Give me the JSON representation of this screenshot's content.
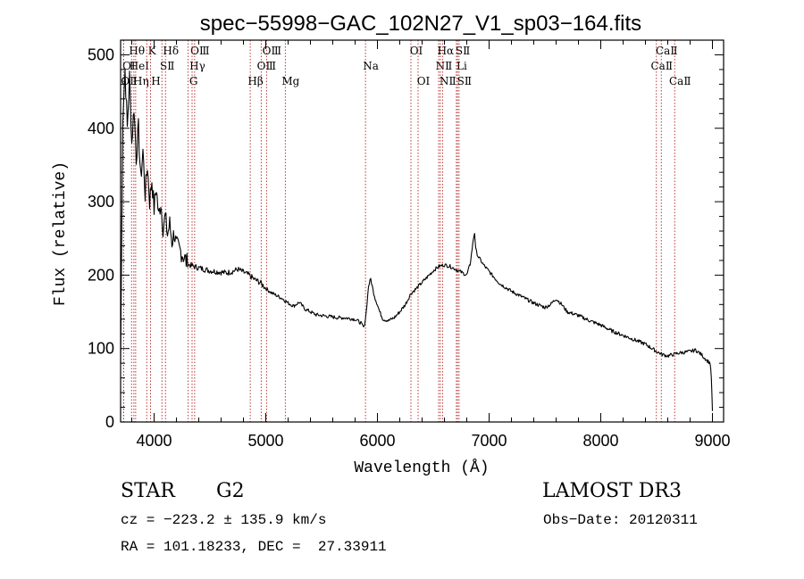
{
  "chart_data": {
    "type": "line",
    "title": "spec−55998−GAC_102N27_V1_sp03−164.fits",
    "xlabel": "Wavelength (Å)",
    "ylabel": "Flux (relative)",
    "xlim": [
      3700,
      9100
    ],
    "ylim": [
      0,
      520
    ],
    "x_ticks": [
      4000,
      5000,
      6000,
      7000,
      8000,
      9000
    ],
    "y_ticks": [
      0,
      100,
      200,
      300,
      400,
      500
    ],
    "x_tick_labels": [
      "4000",
      "5000",
      "6000",
      "7000",
      "8000",
      "9000"
    ],
    "y_tick_labels": [
      "0",
      "100",
      "200",
      "300",
      "400",
      "500"
    ],
    "spectrum": {
      "name": "flux",
      "x": [
        3700,
        3720,
        3740,
        3760,
        3780,
        3800,
        3820,
        3840,
        3860,
        3880,
        3900,
        3920,
        3940,
        3960,
        3980,
        4000,
        4020,
        4040,
        4060,
        4080,
        4100,
        4120,
        4140,
        4160,
        4180,
        4200,
        4250,
        4300,
        4350,
        4400,
        4450,
        4500,
        4550,
        4600,
        4650,
        4700,
        4750,
        4800,
        4850,
        4900,
        4950,
        5000,
        5050,
        5100,
        5150,
        5200,
        5250,
        5300,
        5350,
        5400,
        5450,
        5500,
        5550,
        5600,
        5650,
        5700,
        5750,
        5800,
        5850,
        5880,
        5900,
        5920,
        5940,
        5960,
        5980,
        6000,
        6020,
        6050,
        6100,
        6150,
        6200,
        6250,
        6300,
        6350,
        6400,
        6450,
        6500,
        6550,
        6600,
        6650,
        6700,
        6750,
        6800,
        6830,
        6860,
        6870,
        6880,
        6900,
        6950,
        7000,
        7050,
        7100,
        7200,
        7300,
        7400,
        7500,
        7550,
        7600,
        7650,
        7700,
        7800,
        7900,
        8000,
        8100,
        8200,
        8300,
        8400,
        8500,
        8550,
        8600,
        8650,
        8700,
        8750,
        8800,
        8850,
        8900,
        8950,
        8980,
        8990,
        9000
      ],
      "y": [
        80,
        420,
        480,
        400,
        470,
        380,
        430,
        360,
        400,
        330,
        370,
        310,
        350,
        300,
        330,
        290,
        320,
        280,
        300,
        265,
        280,
        255,
        270,
        245,
        258,
        240,
        230,
        215,
        212,
        210,
        208,
        206,
        205,
        204,
        203,
        205,
        208,
        204,
        200,
        194,
        190,
        182,
        176,
        172,
        168,
        162,
        158,
        163,
        154,
        150,
        146,
        145,
        144,
        143,
        142,
        142,
        141,
        140,
        135,
        128,
        150,
        185,
        195,
        180,
        168,
        160,
        150,
        140,
        138,
        142,
        150,
        160,
        175,
        182,
        190,
        198,
        206,
        212,
        214,
        212,
        208,
        204,
        200,
        215,
        250,
        258,
        235,
        226,
        214,
        205,
        196,
        188,
        178,
        170,
        162,
        156,
        160,
        168,
        160,
        150,
        145,
        138,
        132,
        124,
        118,
        112,
        106,
        96,
        92,
        90,
        92,
        94,
        95,
        96,
        98,
        92,
        84,
        80,
        60,
        15
      ]
    },
    "lines": [
      {
        "label": "OⅠ",
        "wl": 3727,
        "row": 2
      },
      {
        "label": "OⅡ",
        "wl": 3727,
        "row": 3
      },
      {
        "label": "Hθ",
        "wl": 3798,
        "row": 1
      },
      {
        "label": "HeⅠ",
        "wl": 3819,
        "row": 2
      },
      {
        "label": "Hη",
        "wl": 3835,
        "row": 3
      },
      {
        "label": "K",
        "wl": 3934,
        "row": 1
      },
      {
        "label": "H",
        "wl": 3968,
        "row": 3
      },
      {
        "label": "SⅡ",
        "wl": 4070,
        "row": 2
      },
      {
        "label": "Hδ",
        "wl": 4102,
        "row": 1
      },
      {
        "label": "G",
        "wl": 4305,
        "row": 3
      },
      {
        "label": "OⅢ",
        "wl": 4363,
        "row": 1
      },
      {
        "label": "Hγ",
        "wl": 4340,
        "row": 2
      },
      {
        "label": "Hβ",
        "wl": 4861,
        "row": 3
      },
      {
        "label": "OⅢ",
        "wl": 4959,
        "row": 2
      },
      {
        "label": "OⅢ",
        "wl": 5007,
        "row": 1
      },
      {
        "label": "Mg",
        "wl": 5175,
        "row": 3
      },
      {
        "label": "Na",
        "wl": 5893,
        "row": 2
      },
      {
        "label": "OⅠ",
        "wl": 6300,
        "row": 1
      },
      {
        "label": "OⅠ",
        "wl": 6364,
        "row": 3
      },
      {
        "label": "NⅡ",
        "wl": 6548,
        "row": 2
      },
      {
        "label": "Hα",
        "wl": 6563,
        "row": 1
      },
      {
        "label": "NⅡ",
        "wl": 6583,
        "row": 3
      },
      {
        "label": "SⅡ",
        "wl": 6717,
        "row": 1
      },
      {
        "label": "Li",
        "wl": 6707,
        "row": 2
      },
      {
        "label": "SⅡ",
        "wl": 6731,
        "row": 3
      },
      {
        "label": "CaⅡ",
        "wl": 8498,
        "row": 2
      },
      {
        "label": "CaⅡ",
        "wl": 8542,
        "row": 1
      },
      {
        "label": "CaⅡ",
        "wl": 8662,
        "row": 3
      }
    ]
  },
  "info": {
    "class": "STAR",
    "subclass": "G2",
    "survey": "LAMOST DR3",
    "cz": "cz = −223.2 ± 135.9 km/s",
    "obs_date": "Obs−Date: 20120311",
    "coords": "RA = 101.18233, DEC =  27.33911"
  }
}
